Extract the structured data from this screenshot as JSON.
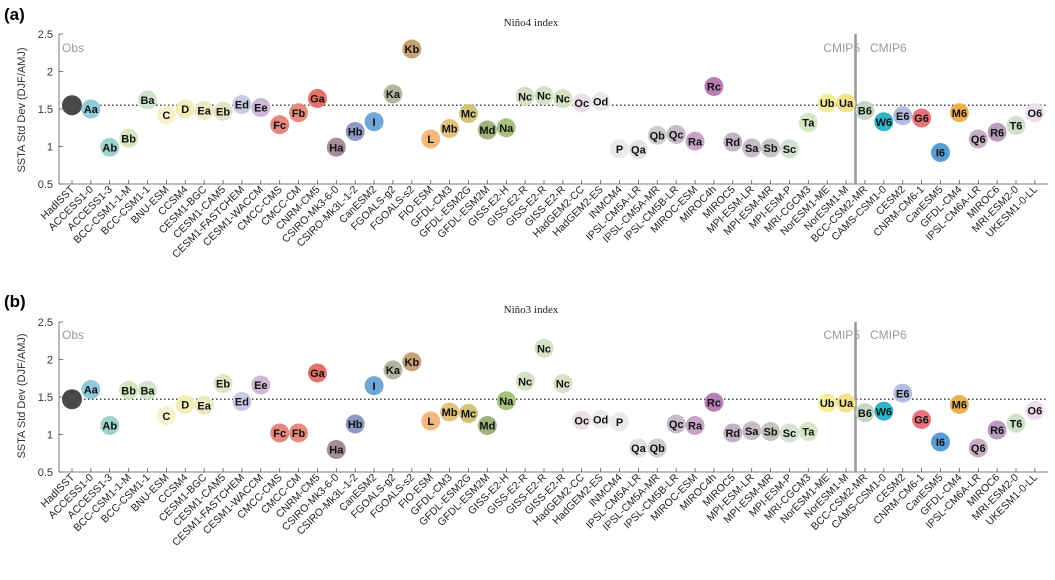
{
  "models": [
    "HadISST",
    "ACCESS1-0",
    "ACCESS1-3",
    "BCC-CSM1-1-M",
    "BCC-CSM1-1",
    "BNU-ESM",
    "CCSM4",
    "CESM1-BGC",
    "CESM1-CAM5",
    "CESM1-FASTCHEM",
    "CESM1-WACCM",
    "CMCC-CMS",
    "CMCC-CM",
    "CNRM-CM5",
    "CSIRO-Mk3-6-0",
    "CSIRO-Mk3L-1-2",
    "CanESM2",
    "FGOALS-g2",
    "FGOALS-s2",
    "FIO-ESM",
    "GFDL-CM3",
    "GFDL-ESM2G",
    "GFDL-ESM2M",
    "GISS-E2-H",
    "GISS-E2-R",
    "GISS-E2-R",
    "GISS-E2-R",
    "HadGEM2-CC",
    "HadGEM2-ES",
    "INMCM4",
    "IPSL-CM5A-LR",
    "IPSL-CM5A-MR",
    "IPSL-CM5B-LR",
    "MIROC-ESM",
    "MIROC4h",
    "MIROC5",
    "MPI-ESM-LR",
    "MPI-ESM-MR",
    "MPI-ESM-P",
    "MRI-CGCM3",
    "NorESM1-ME",
    "NorESM1-M",
    "BCC-CSM2-MR",
    "CAMS-CSM1-0",
    "CESM2",
    "CNRM-CM6-1",
    "CanESM5",
    "GFDL-CM4",
    "IPSL-CM6A-LR",
    "MIROC6",
    "MRI-ESM2-0",
    "UKESM1-0-LL"
  ],
  "codes": [
    "",
    "Aa",
    "Ab",
    "Bb",
    "Ba",
    "C",
    "D",
    "Ea",
    "Eb",
    "Ed",
    "Ee",
    "Fc",
    "Fb",
    "Ga",
    "Ha",
    "Hb",
    "I",
    "Ka",
    "Kb",
    "L",
    "Mb",
    "Mc",
    "Md",
    "Na",
    "Nc",
    "Nc",
    "Nc",
    "Oc",
    "Od",
    "P",
    "Qa",
    "Qb",
    "Qc",
    "Ra",
    "Rc",
    "Rd",
    "Sa",
    "Sb",
    "Sc",
    "Ta",
    "Ub",
    "Ua",
    "B6",
    "W6",
    "E6",
    "G6",
    "I6",
    "M6",
    "Q6",
    "R6",
    "T6",
    "O6"
  ],
  "colors": [
    "#484848",
    "#8fcbd8",
    "#9fd2cc",
    "#d8e6c0",
    "#cfe4c8",
    "#f6f3cc",
    "#f3eeb8",
    "#ece8c4",
    "#e2e4c0",
    "#c9c9e6",
    "#cdb8d8",
    "#e3877f",
    "#e68c7e",
    "#e5716a",
    "#a58d9b",
    "#8e98c4",
    "#6fa7d6",
    "#b4b4a0",
    "#c8a078",
    "#f2b87e",
    "#e2c27e",
    "#d2c27a",
    "#a2b27e",
    "#a6c27e",
    "#d6e0c4",
    "#d6e0c4",
    "#d6e0c4",
    "#ece0e8",
    "#eeeaea",
    "#eaeaea",
    "#e2e2e2",
    "#cecece",
    "#c4bcc6",
    "#c8a4c8",
    "#b77fb2",
    "#c2b2c6",
    "#c8bcc8",
    "#c4c4c0",
    "#d4e2d4",
    "#d6e6c4",
    "#f6ee9a",
    "#f6e08c",
    "#c4d6c4",
    "#30b4c8",
    "#b4bce0",
    "#e8747a",
    "#5a9cd4",
    "#ecb050",
    "#c8aec4",
    "#b89cbe",
    "#d0e0c8",
    "#ecdcec"
  ],
  "panels": [
    {
      "letter": "(a)",
      "title": "Niño4 index",
      "obs_label": "Obs",
      "cmip5_label": "CMIP5",
      "cmip6_label": "CMIP6",
      "ylabel": "SSTA Std Dev (DJF/AMJ)",
      "yticks": [
        "0.5",
        "1",
        "1.5",
        "2",
        "2.5"
      ],
      "values": [
        1.55,
        1.5,
        0.99,
        1.11,
        1.62,
        1.42,
        1.5,
        1.48,
        1.47,
        1.56,
        1.52,
        1.29,
        1.45,
        1.64,
        0.99,
        1.2,
        1.33,
        1.7,
        2.3,
        1.1,
        1.24,
        1.44,
        1.22,
        1.25,
        1.67,
        1.68,
        1.64,
        1.58,
        1.6,
        0.97,
        0.96,
        1.15,
        1.16,
        1.07,
        1.8,
        1.06,
        0.98,
        0.98,
        0.97,
        1.32,
        1.58,
        1.58,
        1.48,
        1.33,
        1.41,
        1.38,
        0.92,
        1.45,
        1.1,
        1.19,
        1.28,
        1.45
      ]
    },
    {
      "letter": "(b)",
      "title": "Niño3 index",
      "obs_label": "Obs",
      "cmip5_label": "CMIP5",
      "cmip6_label": "CMIP6",
      "ylabel": "SSTA Std Dev (DJF/AMJ)",
      "yticks": [
        "0.5",
        "1",
        "1.5",
        "2",
        "2.5"
      ],
      "values": [
        1.47,
        1.6,
        1.12,
        1.59,
        1.59,
        1.25,
        1.4,
        1.39,
        1.68,
        1.44,
        1.66,
        1.02,
        1.02,
        1.82,
        0.8,
        1.14,
        1.65,
        1.86,
        1.97,
        1.18,
        1.3,
        1.28,
        1.12,
        1.45,
        1.71,
        2.15,
        1.68,
        1.19,
        1.2,
        1.17,
        0.82,
        0.82,
        1.14,
        1.12,
        1.43,
        1.02,
        1.05,
        1.04,
        1.02,
        1.04,
        1.42,
        1.42,
        1.29,
        1.31,
        1.55,
        1.2,
        0.9,
        1.4,
        0.82,
        1.06,
        1.15,
        1.32
      ]
    }
  ],
  "chart_data": [
    {
      "type": "scatter",
      "title": "Niño4 index",
      "ylabel": "SSTA Std Dev (DJF/AMJ)",
      "ylim": [
        0.5,
        2.5
      ],
      "reference_line": 1.55,
      "reference_label": "Obs",
      "groups": [
        "CMIP5",
        "CMIP6"
      ]
    },
    {
      "type": "scatter",
      "title": "Niño3 index",
      "ylabel": "SSTA Std Dev (DJF/AMJ)",
      "ylim": [
        0.5,
        2.5
      ],
      "reference_line": 1.47,
      "reference_label": "Obs",
      "groups": [
        "CMIP5",
        "CMIP6"
      ]
    }
  ]
}
